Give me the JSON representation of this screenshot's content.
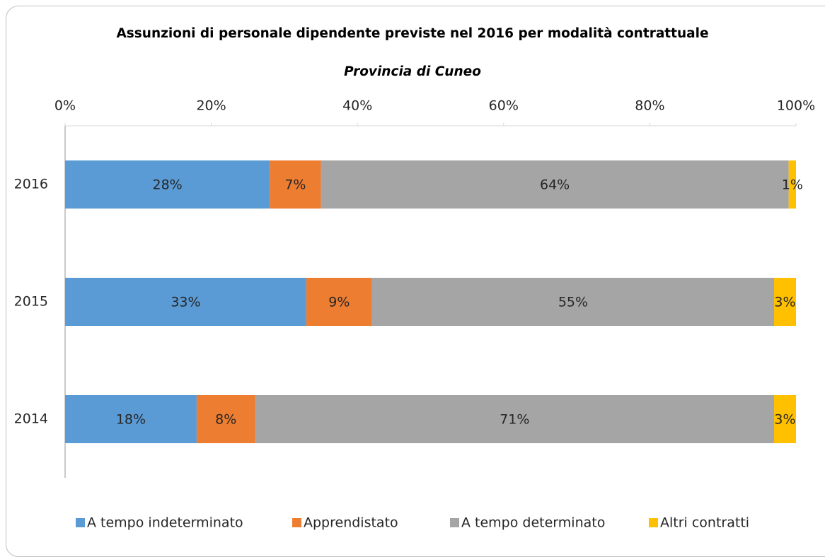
{
  "chart_data": {
    "type": "stacked-bar-horizontal",
    "title": "Assunzioni di personale dipendente previste nel 2016 per modalità contrattuale",
    "subtitle": "Provincia di Cuneo",
    "categories": [
      "2016",
      "2015",
      "2014"
    ],
    "series": [
      {
        "name": "A tempo indeterminato",
        "color": "#5b9bd5",
        "values": [
          28,
          33,
          18
        ],
        "value_labels": [
          "28%",
          "33%",
          "18%"
        ]
      },
      {
        "name": "Apprendistato",
        "color": "#ed7d31",
        "values": [
          7,
          9,
          8
        ],
        "value_labels": [
          "7%",
          "9%",
          "8%"
        ]
      },
      {
        "name": "A tempo determinato",
        "color": "#a5a5a5",
        "values": [
          64,
          55,
          71
        ],
        "value_labels": [
          "64%",
          "55%",
          "71%"
        ]
      },
      {
        "name": "Altri contratti",
        "color": "#ffc000",
        "values": [
          1,
          3,
          3
        ],
        "value_labels": [
          "1%",
          "3%",
          "3%"
        ]
      }
    ],
    "xlim": [
      0,
      100
    ],
    "xticks": [
      {
        "value": 0,
        "label": "0%"
      },
      {
        "value": 20,
        "label": "20%"
      },
      {
        "value": 40,
        "label": "40%"
      },
      {
        "value": 60,
        "label": "60%"
      },
      {
        "value": 80,
        "label": "80%"
      },
      {
        "value": 100,
        "label": "100%"
      }
    ],
    "legend": "bottom"
  }
}
